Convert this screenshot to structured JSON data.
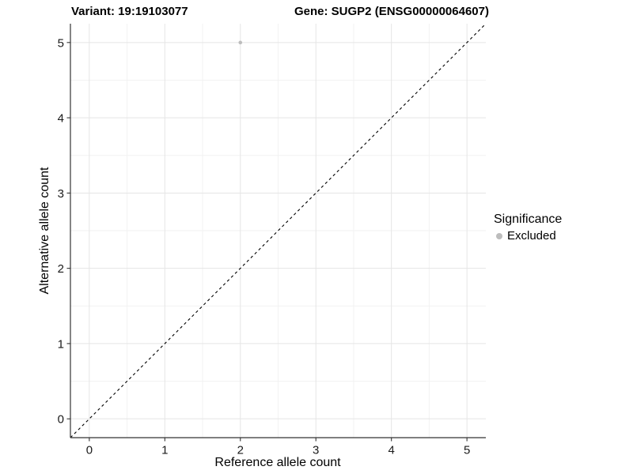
{
  "chart_data": {
    "type": "scatter",
    "title_left": "Variant: 19:19103077",
    "title_right": "Gene: SUGP2 (ENSG00000064607)",
    "xlabel": "Reference allele count",
    "ylabel": "Alternative allele count",
    "xlim": [
      -0.25,
      5.25
    ],
    "ylim": [
      -0.25,
      5.25
    ],
    "x_ticks": [
      0,
      1,
      2,
      3,
      4,
      5
    ],
    "y_ticks": [
      0,
      1,
      2,
      3,
      4,
      5
    ],
    "minor_ticks": [
      0.5,
      1.5,
      2.5,
      3.5,
      4.5
    ],
    "grid": true,
    "points": [
      {
        "x": 2,
        "y": 5,
        "series": "Excluded"
      }
    ],
    "identity_line": {
      "style": "dashed",
      "from": [
        -0.25,
        -0.25
      ],
      "to": [
        5.25,
        5.25
      ],
      "color": "#000000"
    },
    "legend": {
      "position": "right",
      "title": "Significance",
      "items": [
        {
          "label": "Excluded",
          "color": "#bdbdbd"
        }
      ]
    },
    "series_colors": {
      "Excluded": "#bdbdbd"
    },
    "colors": {
      "background": "#ffffff",
      "grid_major": "#e5e5e5",
      "grid_minor": "#f2f2f2",
      "axis_line": "#333333",
      "tick_mark": "#333333",
      "tick_label": "#1a1a1a"
    },
    "point_radius": 2.3
  }
}
